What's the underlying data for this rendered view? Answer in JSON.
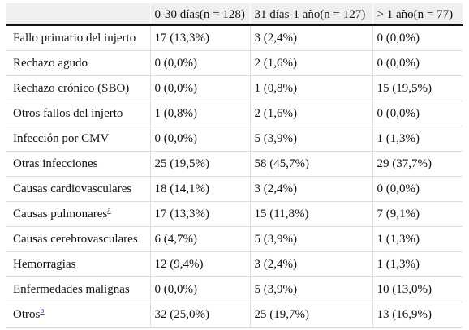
{
  "table": {
    "headers": [
      "",
      "0-30 días(n = 128)",
      "31 días-1 año(n = 127)",
      "> 1 año(n = 77)"
    ],
    "rows": [
      {
        "label": "Fallo primario del injerto",
        "sup": "",
        "c1": "17 (13,3%)",
        "c2": "3 (2,4%)",
        "c3": "0 (0,0%)"
      },
      {
        "label": "Rechazo agudo",
        "sup": "",
        "c1": "0 (0,0%)",
        "c2": "2 (1,6%)",
        "c3": "0 (0,0%)"
      },
      {
        "label": "Rechazo crónico (SBO)",
        "sup": "",
        "c1": "0 (0,0%)",
        "c2": "1 (0,8%)",
        "c3": "15 (19,5%)"
      },
      {
        "label": "Otros fallos del injerto",
        "sup": "",
        "c1": "1 (0,8%)",
        "c2": "2 (1,6%)",
        "c3": "0 (0,0%)"
      },
      {
        "label": "Infección por CMV",
        "sup": "",
        "c1": "0 (0,0%)",
        "c2": "5 (3,9%)",
        "c3": "1 (1,3%)"
      },
      {
        "label": "Otras infecciones",
        "sup": "",
        "c1": "25 (19,5%)",
        "c2": "58 (45,7%)",
        "c3": "29 (37,7%)"
      },
      {
        "label": "Causas cardiovasculares",
        "sup": "",
        "c1": "18 (14,1%)",
        "c2": "3 (2,4%)",
        "c3": "0 (0,0%)"
      },
      {
        "label": "Causas pulmonares",
        "sup": "a",
        "c1": "17 (13,3%)",
        "c2": "15 (11,8%)",
        "c3": "7 (9,1%)"
      },
      {
        "label": "Causas cerebrovasculares",
        "sup": "",
        "c1": "6 (4,7%)",
        "c2": "5 (3,9%)",
        "c3": "1 (1,3%)"
      },
      {
        "label": "Hemorragias",
        "sup": "",
        "c1": "12 (9,4%)",
        "c2": "3 (2,4%)",
        "c3": "1 (1,3%)"
      },
      {
        "label": "Enfermedades malignas",
        "sup": "",
        "c1": "0 (0,0%)",
        "c2": "5 (3,9%)",
        "c3": "10 (13,0%)"
      },
      {
        "label": "Otros",
        "sup": "b",
        "c1": "32 (25,0%)",
        "c2": "25 (19,7%)",
        "c3": "13 (16,9%)"
      }
    ]
  },
  "colors": {
    "header_bg": "#efefef",
    "rule": "#111111",
    "grid": "#dddddd",
    "footnote_link": "#3344cc"
  }
}
